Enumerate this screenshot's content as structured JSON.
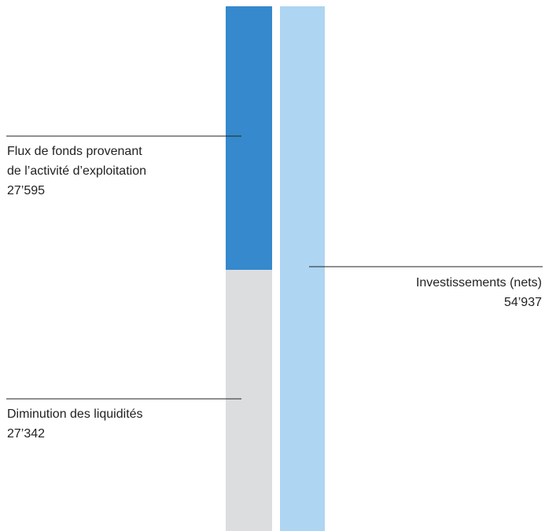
{
  "chart_data": {
    "type": "bar",
    "stacked": true,
    "title": "",
    "xlabel": "",
    "ylabel": "",
    "bars": [
      {
        "segments": [
          {
            "key": "operating",
            "label_lines": [
              "Flux de fonds provenant",
              "de l’activité d’exploitation"
            ],
            "value_text": "27’595",
            "value": 27595,
            "color": "#3589cc"
          },
          {
            "key": "cash_decrease",
            "label_lines": [
              "Diminution des liquidités"
            ],
            "value_text": "27’342",
            "value": 27342,
            "color": "#dcdddf"
          }
        ]
      },
      {
        "segments": [
          {
            "key": "investments",
            "label_lines": [
              "Investissements (nets)"
            ],
            "value_text": "54’937",
            "value": 54937,
            "color": "#aed5f2"
          }
        ]
      }
    ],
    "leader_line_color": "#222222"
  }
}
